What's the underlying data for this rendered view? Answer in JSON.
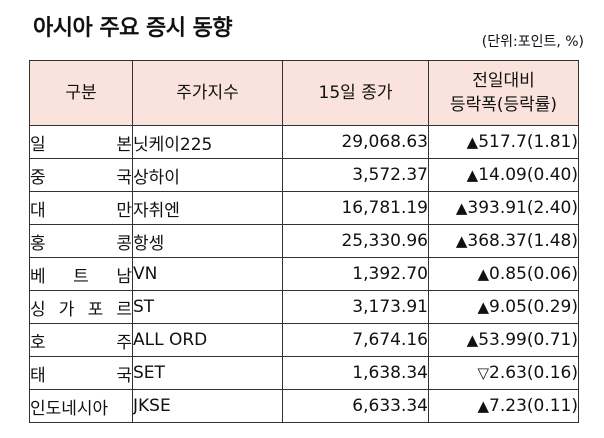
{
  "title": "아시아 주요 증시 동향",
  "unit_note": "(단위:포인트, %)",
  "headers": {
    "region": "구분",
    "index": "주가지수",
    "close": "15일 종가",
    "change_line1": "전일대비",
    "change_line2": "등락폭(등락률)"
  },
  "rows": [
    {
      "region": "일본",
      "index": "닛케이225",
      "close": "29,068.63",
      "direction": "up",
      "arrow": "▲",
      "change": "517.7(1.81)"
    },
    {
      "region": "중국",
      "index": "상하이",
      "close": "3,572.37",
      "direction": "up",
      "arrow": "▲",
      "change": "14.09(0.40)"
    },
    {
      "region": "대만",
      "index": "자취엔",
      "close": "16,781.19",
      "direction": "up",
      "arrow": "▲",
      "change": "393.91(2.40)"
    },
    {
      "region": "홍콩",
      "index": "항셍",
      "close": "25,330.96",
      "direction": "up",
      "arrow": "▲",
      "change": "368.37(1.48)"
    },
    {
      "region": "베트남",
      "index": "VN",
      "close": "1,392.70",
      "direction": "up",
      "arrow": "▲",
      "change": "0.85(0.06)"
    },
    {
      "region": "싱가포르",
      "index": "ST",
      "close": "3,173.91",
      "direction": "up",
      "arrow": "▲",
      "change": "9.05(0.29)"
    },
    {
      "region": "호주",
      "index": "ALL ORD",
      "close": "7,674.16",
      "direction": "up",
      "arrow": "▲",
      "change": "53.99(0.71)"
    },
    {
      "region": "태국",
      "index": "SET",
      "close": "1,638.34",
      "direction": "down",
      "arrow": "▽",
      "change": "2.63(0.16)"
    },
    {
      "region": "인도네시아",
      "index": "JKSE",
      "close": "6,633.34",
      "direction": "up",
      "arrow": "▲",
      "change": "7.23(0.11)"
    }
  ],
  "colors": {
    "header_bg": "#fbe3dd",
    "border": "#333333",
    "text": "#111111"
  }
}
